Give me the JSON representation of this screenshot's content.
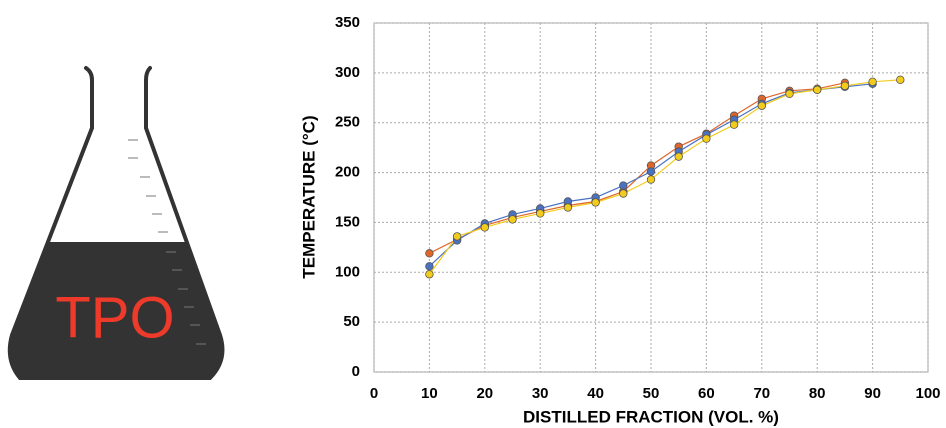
{
  "label": "TPO",
  "chart_data": {
    "type": "line",
    "x_label": "DISTILLED FRACTION (VOL. %)",
    "y_label": "TEMPERATURE (°C)",
    "x": [
      10,
      15,
      20,
      25,
      30,
      35,
      40,
      45,
      50,
      55,
      60,
      65,
      70,
      75,
      80,
      85,
      90,
      95
    ],
    "series": [
      {
        "color": "#e0652a",
        "values": [
          119,
          133,
          147,
          155,
          161,
          167,
          171,
          181,
          207,
          226,
          239,
          257,
          274,
          282,
          284,
          290,
          null,
          null
        ]
      },
      {
        "color": "#4a72c0",
        "values": [
          106,
          132,
          149,
          158,
          164,
          171,
          175,
          187,
          201,
          221,
          238,
          253,
          269,
          280,
          283,
          286,
          289,
          null
        ]
      },
      {
        "color": "#f2cc1c",
        "values": [
          98,
          136,
          145,
          153,
          159,
          165,
          170,
          179,
          193,
          216,
          234,
          248,
          267,
          279,
          283,
          287,
          291,
          293
        ]
      }
    ],
    "xlim": [
      0,
      100
    ],
    "xticks": [
      0,
      10,
      20,
      30,
      40,
      50,
      60,
      70,
      80,
      90,
      100
    ],
    "ylim": [
      0,
      350
    ],
    "yticks": [
      0,
      50,
      100,
      150,
      200,
      250,
      300,
      350
    ],
    "grid": true
  }
}
